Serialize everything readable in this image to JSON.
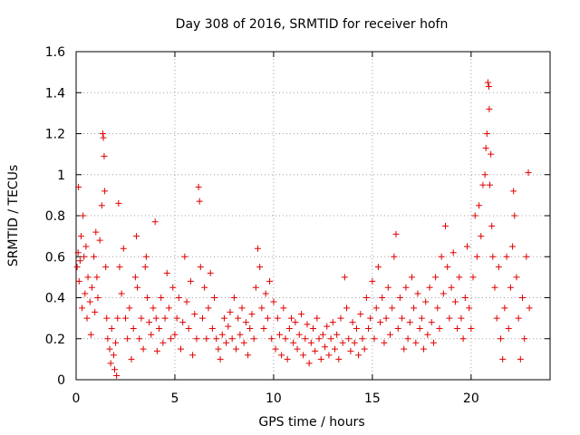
{
  "chart_data": {
    "type": "scatter",
    "title": "Day 308 of 2016, SRMTID for receiver hofn",
    "xlabel": "GPS time / hours",
    "ylabel": "SRMTID / TECUs",
    "xlim": [
      0,
      24
    ],
    "ylim": [
      0,
      1.6
    ],
    "x_ticks": [
      0,
      5,
      10,
      15,
      20
    ],
    "x_tick_labels": [
      "0",
      "5",
      "10",
      "15",
      "20"
    ],
    "y_ticks": [
      0,
      0.2,
      0.4,
      0.6,
      0.8,
      1,
      1.2,
      1.4,
      1.6
    ],
    "y_tick_labels": [
      "0",
      "0.2",
      "0.4",
      "0.6",
      "0.8",
      "1",
      "1.2",
      "1.4",
      "1.6"
    ],
    "grid": true,
    "marker": "plus",
    "color": "#e00000",
    "series": [
      {
        "name": "SRMTID",
        "points": [
          [
            0.05,
            0.55
          ],
          [
            0.1,
            0.62
          ],
          [
            0.12,
            0.94
          ],
          [
            0.15,
            0.48
          ],
          [
            0.2,
            0.58
          ],
          [
            0.25,
            0.7
          ],
          [
            0.3,
            0.35
          ],
          [
            0.35,
            0.8
          ],
          [
            0.4,
            0.6
          ],
          [
            0.45,
            0.42
          ],
          [
            0.5,
            0.65
          ],
          [
            0.55,
            0.3
          ],
          [
            0.6,
            0.5
          ],
          [
            0.7,
            0.38
          ],
          [
            0.75,
            0.22
          ],
          [
            0.8,
            0.45
          ],
          [
            0.9,
            0.6
          ],
          [
            0.95,
            0.33
          ],
          [
            1.0,
            0.72
          ],
          [
            1.05,
            0.5
          ],
          [
            1.1,
            0.4
          ],
          [
            1.2,
            0.68
          ],
          [
            1.3,
            0.85
          ],
          [
            1.35,
            1.2
          ],
          [
            1.38,
            1.18
          ],
          [
            1.42,
            1.09
          ],
          [
            1.45,
            0.92
          ],
          [
            1.5,
            0.55
          ],
          [
            1.55,
            0.3
          ],
          [
            1.6,
            0.2
          ],
          [
            1.7,
            0.15
          ],
          [
            1.75,
            0.08
          ],
          [
            1.8,
            0.25
          ],
          [
            1.9,
            0.12
          ],
          [
            1.95,
            0.05
          ],
          [
            2.0,
            0.18
          ],
          [
            2.05,
            0.02
          ],
          [
            2.1,
            0.3
          ],
          [
            2.15,
            0.86
          ],
          [
            2.2,
            0.55
          ],
          [
            2.3,
            0.42
          ],
          [
            2.4,
            0.64
          ],
          [
            2.5,
            0.3
          ],
          [
            2.6,
            0.2
          ],
          [
            2.7,
            0.35
          ],
          [
            2.8,
            0.1
          ],
          [
            2.9,
            0.25
          ],
          [
            3.0,
            0.5
          ],
          [
            3.05,
            0.7
          ],
          [
            3.1,
            0.45
          ],
          [
            3.2,
            0.2
          ],
          [
            3.3,
            0.3
          ],
          [
            3.4,
            0.15
          ],
          [
            3.5,
            0.55
          ],
          [
            3.55,
            0.6
          ],
          [
            3.6,
            0.4
          ],
          [
            3.7,
            0.28
          ],
          [
            3.8,
            0.22
          ],
          [
            3.9,
            0.35
          ],
          [
            4.0,
            0.77
          ],
          [
            4.05,
            0.3
          ],
          [
            4.1,
            0.14
          ],
          [
            4.2,
            0.25
          ],
          [
            4.3,
            0.4
          ],
          [
            4.4,
            0.18
          ],
          [
            4.5,
            0.3
          ],
          [
            4.6,
            0.52
          ],
          [
            4.7,
            0.35
          ],
          [
            4.8,
            0.2
          ],
          [
            4.9,
            0.45
          ],
          [
            5.0,
            0.22
          ],
          [
            5.1,
            0.3
          ],
          [
            5.2,
            0.4
          ],
          [
            5.3,
            0.15
          ],
          [
            5.4,
            0.28
          ],
          [
            5.5,
            0.6
          ],
          [
            5.6,
            0.38
          ],
          [
            5.7,
            0.25
          ],
          [
            5.8,
            0.48
          ],
          [
            5.9,
            0.12
          ],
          [
            6.0,
            0.32
          ],
          [
            6.1,
            0.2
          ],
          [
            6.2,
            0.94
          ],
          [
            6.25,
            0.87
          ],
          [
            6.3,
            0.55
          ],
          [
            6.4,
            0.3
          ],
          [
            6.5,
            0.45
          ],
          [
            6.6,
            0.2
          ],
          [
            6.7,
            0.35
          ],
          [
            6.8,
            0.52
          ],
          [
            6.9,
            0.25
          ],
          [
            7.0,
            0.4
          ],
          [
            7.1,
            0.2
          ],
          [
            7.2,
            0.15
          ],
          [
            7.3,
            0.1
          ],
          [
            7.4,
            0.22
          ],
          [
            7.5,
            0.3
          ],
          [
            7.6,
            0.18
          ],
          [
            7.7,
            0.26
          ],
          [
            7.8,
            0.33
          ],
          [
            7.9,
            0.2
          ],
          [
            8.0,
            0.4
          ],
          [
            8.1,
            0.15
          ],
          [
            8.2,
            0.3
          ],
          [
            8.3,
            0.22
          ],
          [
            8.4,
            0.35
          ],
          [
            8.5,
            0.18
          ],
          [
            8.6,
            0.28
          ],
          [
            8.7,
            0.12
          ],
          [
            8.8,
            0.25
          ],
          [
            8.9,
            0.32
          ],
          [
            9.0,
            0.2
          ],
          [
            9.1,
            0.45
          ],
          [
            9.2,
            0.64
          ],
          [
            9.3,
            0.55
          ],
          [
            9.4,
            0.35
          ],
          [
            9.5,
            0.25
          ],
          [
            9.6,
            0.42
          ],
          [
            9.7,
            0.3
          ],
          [
            9.8,
            0.48
          ],
          [
            9.9,
            0.2
          ],
          [
            10.0,
            0.38
          ],
          [
            10.1,
            0.15
          ],
          [
            10.2,
            0.3
          ],
          [
            10.3,
            0.22
          ],
          [
            10.4,
            0.12
          ],
          [
            10.5,
            0.35
          ],
          [
            10.6,
            0.2
          ],
          [
            10.7,
            0.1
          ],
          [
            10.8,
            0.25
          ],
          [
            10.9,
            0.3
          ],
          [
            11.0,
            0.18
          ],
          [
            11.1,
            0.28
          ],
          [
            11.2,
            0.15
          ],
          [
            11.3,
            0.22
          ],
          [
            11.4,
            0.32
          ],
          [
            11.5,
            0.12
          ],
          [
            11.6,
            0.2
          ],
          [
            11.7,
            0.27
          ],
          [
            11.8,
            0.08
          ],
          [
            11.9,
            0.18
          ],
          [
            12.0,
            0.25
          ],
          [
            12.1,
            0.14
          ],
          [
            12.2,
            0.3
          ],
          [
            12.3,
            0.2
          ],
          [
            12.4,
            0.1
          ],
          [
            12.5,
            0.22
          ],
          [
            12.6,
            0.16
          ],
          [
            12.7,
            0.26
          ],
          [
            12.8,
            0.12
          ],
          [
            12.9,
            0.2
          ],
          [
            13.0,
            0.28
          ],
          [
            13.1,
            0.15
          ],
          [
            13.2,
            0.22
          ],
          [
            13.3,
            0.1
          ],
          [
            13.4,
            0.3
          ],
          [
            13.5,
            0.18
          ],
          [
            13.6,
            0.5
          ],
          [
            13.7,
            0.35
          ],
          [
            13.8,
            0.2
          ],
          [
            13.9,
            0.14
          ],
          [
            14.0,
            0.28
          ],
          [
            14.1,
            0.18
          ],
          [
            14.2,
            0.25
          ],
          [
            14.3,
            0.12
          ],
          [
            14.4,
            0.32
          ],
          [
            14.5,
            0.2
          ],
          [
            14.6,
            0.15
          ],
          [
            14.7,
            0.4
          ],
          [
            14.8,
            0.25
          ],
          [
            14.9,
            0.3
          ],
          [
            15.0,
            0.48
          ],
          [
            15.1,
            0.2
          ],
          [
            15.2,
            0.35
          ],
          [
            15.3,
            0.55
          ],
          [
            15.4,
            0.28
          ],
          [
            15.5,
            0.4
          ],
          [
            15.6,
            0.18
          ],
          [
            15.7,
            0.3
          ],
          [
            15.8,
            0.45
          ],
          [
            15.9,
            0.22
          ],
          [
            16.0,
            0.35
          ],
          [
            16.1,
            0.6
          ],
          [
            16.2,
            0.71
          ],
          [
            16.3,
            0.25
          ],
          [
            16.4,
            0.4
          ],
          [
            16.5,
            0.3
          ],
          [
            16.6,
            0.15
          ],
          [
            16.7,
            0.45
          ],
          [
            16.8,
            0.2
          ],
          [
            16.9,
            0.28
          ],
          [
            17.0,
            0.5
          ],
          [
            17.1,
            0.35
          ],
          [
            17.2,
            0.18
          ],
          [
            17.3,
            0.42
          ],
          [
            17.4,
            0.25
          ],
          [
            17.5,
            0.3
          ],
          [
            17.6,
            0.15
          ],
          [
            17.7,
            0.38
          ],
          [
            17.8,
            0.22
          ],
          [
            17.9,
            0.45
          ],
          [
            18.0,
            0.28
          ],
          [
            18.1,
            0.18
          ],
          [
            18.2,
            0.5
          ],
          [
            18.3,
            0.35
          ],
          [
            18.4,
            0.25
          ],
          [
            18.5,
            0.6
          ],
          [
            18.6,
            0.42
          ],
          [
            18.7,
            0.75
          ],
          [
            18.8,
            0.55
          ],
          [
            18.9,
            0.3
          ],
          [
            19.0,
            0.45
          ],
          [
            19.1,
            0.62
          ],
          [
            19.2,
            0.38
          ],
          [
            19.3,
            0.25
          ],
          [
            19.4,
            0.5
          ],
          [
            19.5,
            0.3
          ],
          [
            19.6,
            0.2
          ],
          [
            19.7,
            0.4
          ],
          [
            19.8,
            0.65
          ],
          [
            19.9,
            0.35
          ],
          [
            20.0,
            0.25
          ],
          [
            20.1,
            0.5
          ],
          [
            20.2,
            0.8
          ],
          [
            20.3,
            0.6
          ],
          [
            20.4,
            0.85
          ],
          [
            20.5,
            0.7
          ],
          [
            20.6,
            0.95
          ],
          [
            20.7,
            1.0
          ],
          [
            20.75,
            1.13
          ],
          [
            20.8,
            1.2
          ],
          [
            20.85,
            1.45
          ],
          [
            20.9,
            1.43
          ],
          [
            20.92,
            1.32
          ],
          [
            20.95,
            0.95
          ],
          [
            21.0,
            1.1
          ],
          [
            21.05,
            0.75
          ],
          [
            21.1,
            0.6
          ],
          [
            21.2,
            0.45
          ],
          [
            21.3,
            0.3
          ],
          [
            21.4,
            0.55
          ],
          [
            21.5,
            0.2
          ],
          [
            21.6,
            0.1
          ],
          [
            21.7,
            0.35
          ],
          [
            21.8,
            0.6
          ],
          [
            21.9,
            0.25
          ],
          [
            22.0,
            0.45
          ],
          [
            22.1,
            0.65
          ],
          [
            22.15,
            0.92
          ],
          [
            22.2,
            0.8
          ],
          [
            22.3,
            0.5
          ],
          [
            22.4,
            0.3
          ],
          [
            22.5,
            0.1
          ],
          [
            22.6,
            0.4
          ],
          [
            22.7,
            0.2
          ],
          [
            22.8,
            0.6
          ],
          [
            22.9,
            1.01
          ],
          [
            22.95,
            0.35
          ]
        ]
      }
    ]
  }
}
